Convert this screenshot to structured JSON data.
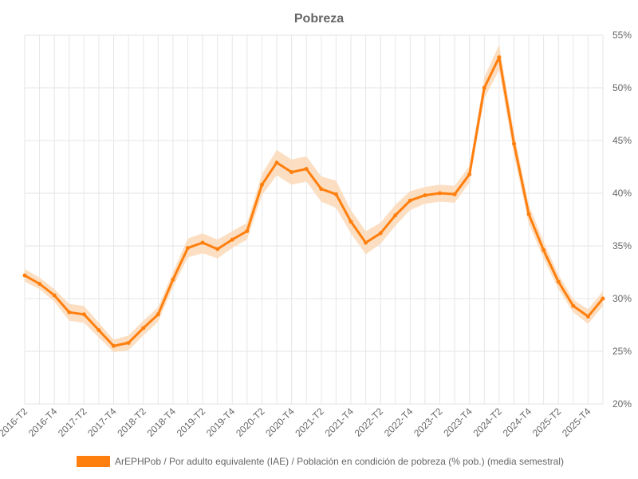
{
  "chart_data": {
    "type": "line",
    "title": "Pobreza",
    "x": [
      "2016-T2",
      "2016-T3",
      "2016-T4",
      "2017-T1",
      "2017-T2",
      "2017-T3",
      "2017-T4",
      "2018-T1",
      "2018-T2",
      "2018-T3",
      "2018-T4",
      "2019-T1",
      "2019-T2",
      "2019-T3",
      "2019-T4",
      "2020-T1",
      "2020-T2",
      "2020-T3",
      "2020-T4",
      "2021-T1",
      "2021-T2",
      "2021-T3",
      "2021-T4",
      "2022-T1",
      "2022-T2",
      "2022-T3",
      "2022-T4",
      "2023-T1",
      "2023-T2",
      "2023-T3",
      "2023-T4",
      "2024-T1",
      "2024-T2",
      "2024-T3",
      "2024-T4",
      "2025-T1",
      "2025-T2",
      "2025-T3",
      "2025-T4",
      "2026-T1"
    ],
    "x_tick_labels": [
      "2016-T2",
      "2016-T4",
      "2017-T2",
      "2017-T4",
      "2018-T2",
      "2018-T4",
      "2019-T2",
      "2019-T4",
      "2020-T2",
      "2020-T4",
      "2021-T2",
      "2021-T4",
      "2022-T2",
      "2022-T4",
      "2023-T2",
      "2023-T4",
      "2024-T2",
      "2024-T4",
      "2025-T2",
      "2025-T4"
    ],
    "y_tick_labels": [
      "20%",
      "25%",
      "30%",
      "35%",
      "40%",
      "45%",
      "50%",
      "55%"
    ],
    "ylim": [
      20,
      55
    ],
    "y_axis_position": "right",
    "grid": true,
    "legend_position": "bottom",
    "series": [
      {
        "name": "ArEPHPob / Por adulto equivalente (IAE) / Población en condición de pobreza (% pob.) (media semestral)",
        "color": "#ff7f0e",
        "band_color": "#fbd9b9",
        "values": [
          32.2,
          31.4,
          30.3,
          28.7,
          28.5,
          27.0,
          25.5,
          25.8,
          27.2,
          28.5,
          31.8,
          34.8,
          35.3,
          34.7,
          35.6,
          36.4,
          40.8,
          42.9,
          42.0,
          42.3,
          40.4,
          39.9,
          37.3,
          35.3,
          36.2,
          37.9,
          39.3,
          39.8,
          40.0,
          39.9,
          41.8,
          50.0,
          52.9,
          44.7,
          38.0,
          34.6,
          31.6,
          29.3,
          28.3,
          30.0
        ],
        "lower": [
          31.6,
          30.9,
          29.7,
          27.9,
          27.7,
          26.3,
          24.9,
          25.1,
          26.5,
          27.8,
          31.1,
          33.9,
          34.3,
          33.8,
          34.8,
          35.6,
          39.8,
          41.7,
          40.8,
          41.1,
          39.2,
          38.6,
          36.2,
          34.2,
          35.2,
          36.9,
          38.4,
          39.0,
          39.2,
          39.1,
          41.0,
          49.0,
          51.7,
          43.6,
          37.1,
          33.8,
          30.9,
          28.7,
          27.6,
          29.3
        ],
        "upper": [
          32.8,
          32.0,
          30.9,
          29.5,
          29.3,
          27.7,
          26.1,
          26.5,
          27.9,
          29.2,
          32.5,
          35.7,
          36.2,
          35.6,
          36.4,
          37.2,
          41.8,
          44.1,
          43.2,
          43.5,
          41.6,
          41.2,
          38.4,
          36.4,
          37.2,
          38.9,
          40.2,
          40.6,
          40.8,
          40.7,
          42.6,
          51.0,
          54.1,
          45.8,
          38.9,
          35.4,
          32.3,
          29.9,
          29.0,
          30.7
        ]
      }
    ]
  }
}
